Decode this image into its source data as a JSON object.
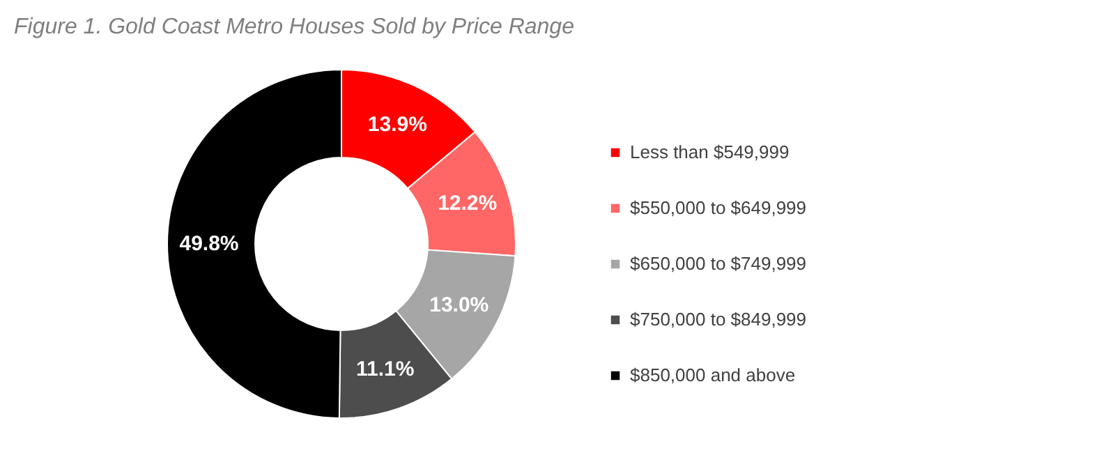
{
  "chart_data": {
    "type": "donut",
    "title": "Figure 1. Gold Coast Metro Houses Sold by Price Range",
    "categories": [
      "Less than $549,999",
      "$550,000 to $649,999",
      "$650,000 to $749,999",
      "$750,000 to $849,999",
      "$850,000 and above"
    ],
    "values": [
      13.9,
      12.2,
      13.0,
      11.1,
      49.8
    ],
    "colors": [
      "#ff0000",
      "#ff6666",
      "#a6a6a6",
      "#4d4d4d",
      "#000000"
    ],
    "value_labels": [
      "13.9%",
      "12.2%",
      "13.0%",
      "11.1%",
      "49.8%"
    ],
    "legend": "right"
  }
}
